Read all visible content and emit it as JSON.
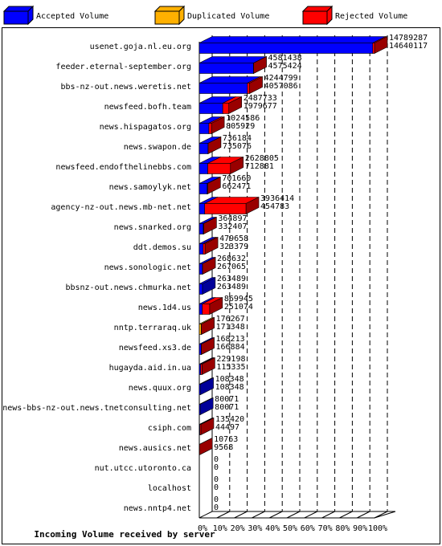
{
  "chart_data": {
    "type": "bar",
    "orientation": "horizontal",
    "xlabel": "Incoming Volume received by server",
    "categories": [
      "usenet.goja.nl.eu.org",
      "feeder.eternal-september.org",
      "bbs-nz-out.news.weretis.net",
      "newsfeed.bofh.team",
      "news.hispagatos.org",
      "news.swapon.de",
      "newsfeed.endofthelinebbs.com",
      "news.samoylyk.net",
      "agency-nz-out.news.mb-net.net",
      "news.snarked.org",
      "ddt.demos.su",
      "news.sonologic.net",
      "bbsnz-out.news.chmurka.net",
      "news.1d4.us",
      "nntp.terraraq.uk",
      "newsfeed.xs3.de",
      "hugayda.aid.in.ua",
      "news.quux.org",
      "news-bbs-nz-out.news.tnetconsulting.net",
      "csiph.com",
      "news.ausics.net",
      "nut.utcc.utoronto.ca",
      "localhost",
      "news.nntp4.net"
    ],
    "series": [
      {
        "name": "Accepted Volume",
        "color": "#0000ff",
        "values": [
          98.99,
          30.94,
          27.43,
          13.39,
          5.45,
          4.97,
          4.82,
          4.48,
          3.08,
          2.25,
          2.19,
          1.81,
          1.78,
          1.7,
          0,
          1.13,
          0.78,
          0.73,
          0.54,
          0.3,
          0,
          0,
          0,
          0
        ]
      },
      {
        "name": "Duplicated Volume",
        "color": "#ffb000",
        "values": [
          0,
          0,
          0,
          0,
          0,
          0,
          0,
          0,
          0,
          0,
          0,
          0,
          0,
          0,
          1.16,
          0,
          0,
          0,
          0,
          0,
          0.06,
          0,
          0,
          0
        ]
      },
      {
        "name": "Rejected Volume",
        "color": "#ff0000",
        "values": [
          1.01,
          0.04,
          1.27,
          3.44,
          1.48,
          0.01,
          12.95,
          0.26,
          23.54,
          0.22,
          1.06,
          0.01,
          0,
          4.18,
          0.03,
          0.01,
          0.77,
          0,
          0,
          0.61,
          0.01,
          0,
          0,
          0
        ]
      }
    ],
    "volume_total": [
      14789287,
      4581438,
      4244799,
      2487733,
      1024586,
      736184,
      2628805,
      701660,
      3936414,
      364897,
      479658,
      268632,
      263489,
      869945,
      176267,
      168213,
      229198,
      108348,
      80071,
      135420,
      10763,
      0,
      0,
      0
    ],
    "volume_accepted": [
      14640117,
      4575424,
      4057086,
      1979677,
      805929,
      735076,
      712881,
      662471,
      454783,
      332407,
      323379,
      267065,
      263489,
      251074,
      171348,
      166884,
      115335,
      108348,
      80071,
      44497,
      9568,
      0,
      0,
      0
    ],
    "xlim": [
      0,
      100
    ],
    "xticks": [
      {
        "value": 0,
        "label": "0%"
      },
      {
        "value": 10,
        "label": "10%"
      },
      {
        "value": 20,
        "label": "20%"
      },
      {
        "value": 30,
        "label": "30%"
      },
      {
        "value": 40,
        "label": "40%"
      },
      {
        "value": 50,
        "label": "50%"
      },
      {
        "value": 60,
        "label": "60%"
      },
      {
        "value": 70,
        "label": "70%"
      },
      {
        "value": 80,
        "label": "80%"
      },
      {
        "value": 90,
        "label": "90%"
      },
      {
        "value": 100,
        "label": "100%"
      }
    ],
    "grid": true
  }
}
